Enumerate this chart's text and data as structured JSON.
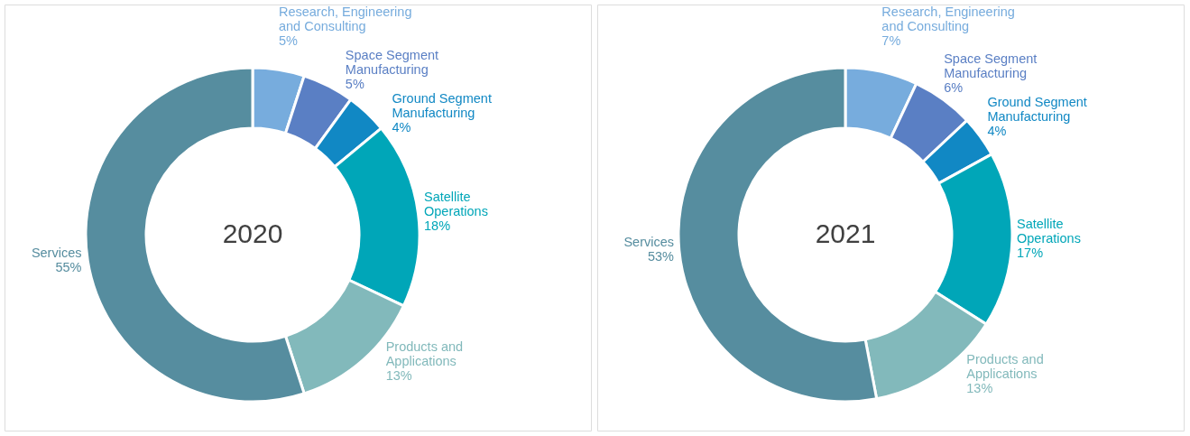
{
  "chart_data": [
    {
      "type": "donut",
      "title": "2020",
      "categories": [
        "Research, Engineering and Consulting",
        "Space Segment Manufacturing",
        "Ground Segment Manufacturing",
        "Satellite Operations",
        "Products and Applications",
        "Services"
      ],
      "values": [
        5,
        5,
        4,
        18,
        13,
        55
      ],
      "value_labels": [
        "5%",
        "5%",
        "4%",
        "18%",
        "13%",
        "55%"
      ],
      "colors": [
        "#77acdd",
        "#5a7fc4",
        "#1188c4",
        "#00a6b8",
        "#82b9bb",
        "#568d9f"
      ]
    },
    {
      "type": "donut",
      "title": "2021",
      "categories": [
        "Research, Engineering and Consulting",
        "Space Segment Manufacturing",
        "Ground Segment Manufacturing",
        "Satellite Operations",
        "Products and Applications",
        "Services"
      ],
      "values": [
        7,
        6,
        4,
        17,
        13,
        53
      ],
      "value_labels": [
        "7%",
        "6%",
        "4%",
        "17%",
        "13%",
        "53%"
      ],
      "colors": [
        "#77acdd",
        "#5a7fc4",
        "#1188c4",
        "#00a6b8",
        "#82b9bb",
        "#568d9f"
      ]
    }
  ]
}
